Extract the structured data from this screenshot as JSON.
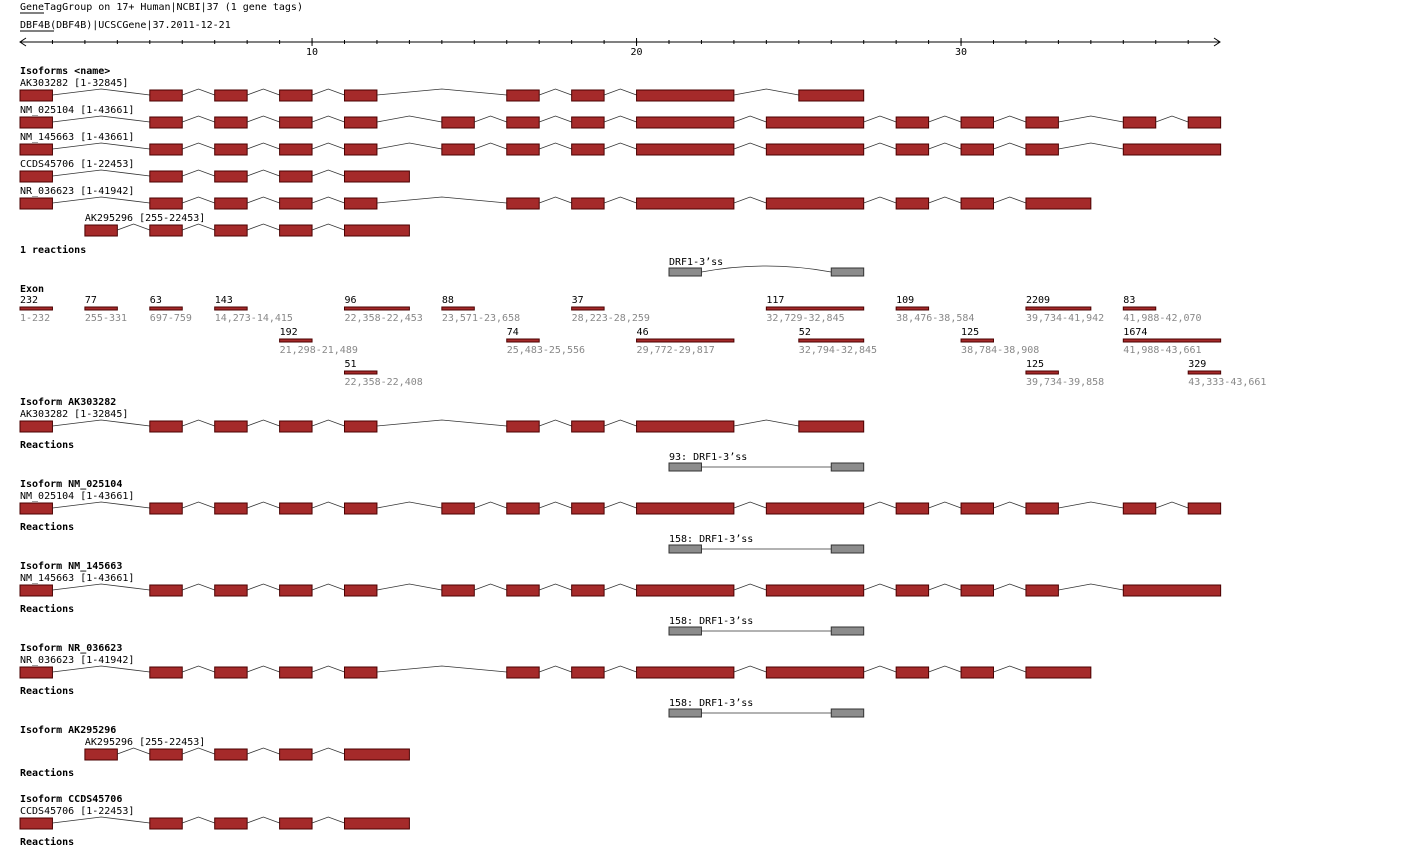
{
  "header": {
    "title": "GeneTagGroup on 17+ Human|NCBI|37 (1 gene tags)",
    "gene": "DBF4B(DBF4B)|UCSCGene|37.2011-12-21"
  },
  "ruler": {
    "ticks": [
      10,
      20,
      30
    ]
  },
  "isoforms": {
    "title": "Isoforms <name>",
    "items": [
      {
        "label": "AK303282 [1-32845]"
      },
      {
        "label": "NM_025104 [1-43661]"
      },
      {
        "label": "NM_145663 [1-43661]"
      },
      {
        "label": "CCDS45706 [1-22453]"
      },
      {
        "label": "NR_036623 [1-41942]"
      },
      {
        "label": "AK295296 [255-22453]"
      }
    ]
  },
  "reactions": {
    "title": "1 reactions",
    "items": [
      {
        "label": "DRF1-3’ss"
      }
    ]
  },
  "exons": {
    "title": "Exon",
    "items": [
      {
        "length": "232",
        "range": "1-232"
      },
      {
        "length": "77",
        "range": "255-331"
      },
      {
        "length": "63",
        "range": "697-759"
      },
      {
        "length": "143",
        "range": "14,273-14,415"
      },
      {
        "length": "96",
        "range": "22,358-22,453"
      },
      {
        "length": "88",
        "range": "23,571-23,658"
      },
      {
        "length": "37",
        "range": "28,223-28,259"
      },
      {
        "length": "117",
        "range": "32,729-32,845"
      },
      {
        "length": "109",
        "range": "38,476-38,584"
      },
      {
        "length": "2209",
        "range": "39,734-41,942"
      },
      {
        "length": "83",
        "range": "41,988-42,070"
      },
      {
        "length": "192",
        "range": "21,298-21,489"
      },
      {
        "length": "74",
        "range": "25,483-25,556"
      },
      {
        "length": "46",
        "range": "29,772-29,817"
      },
      {
        "length": "52",
        "range": "32,794-32,845"
      },
      {
        "length": "125",
        "range": "38,784-38,908"
      },
      {
        "length": "1674",
        "range": "41,988-43,661"
      },
      {
        "length": "51",
        "range": "22,358-22,408"
      },
      {
        "length": "125",
        "range": "39,734-39,858"
      },
      {
        "length": "329",
        "range": "43,333-43,661"
      }
    ]
  },
  "sections": [
    {
      "title": "Isoform AK303282",
      "isoform": "AK303282 [1-32845]",
      "reactions_title": "Reactions",
      "reactions": [
        "93: DRF1-3’ss"
      ]
    },
    {
      "title": "Isoform NM_025104",
      "isoform": "NM_025104 [1-43661]",
      "reactions_title": "Reactions",
      "reactions": [
        "158: DRF1-3’ss"
      ]
    },
    {
      "title": "Isoform NM_145663",
      "isoform": "NM_145663 [1-43661]",
      "reactions_title": "Reactions",
      "reactions": [
        "158: DRF1-3’ss"
      ]
    },
    {
      "title": "Isoform NR_036623",
      "isoform": "NR_036623 [1-41942]",
      "reactions_title": "Reactions",
      "reactions": [
        "158: DRF1-3’ss"
      ]
    },
    {
      "title": "Isoform AK295296",
      "isoform": "AK295296 [255-22453]",
      "reactions_title": "Reactions",
      "reactions": []
    },
    {
      "title": "Isoform CCDS45706",
      "isoform": "CCDS45706 [1-22453]",
      "reactions_title": "Reactions",
      "reactions": []
    }
  ]
}
